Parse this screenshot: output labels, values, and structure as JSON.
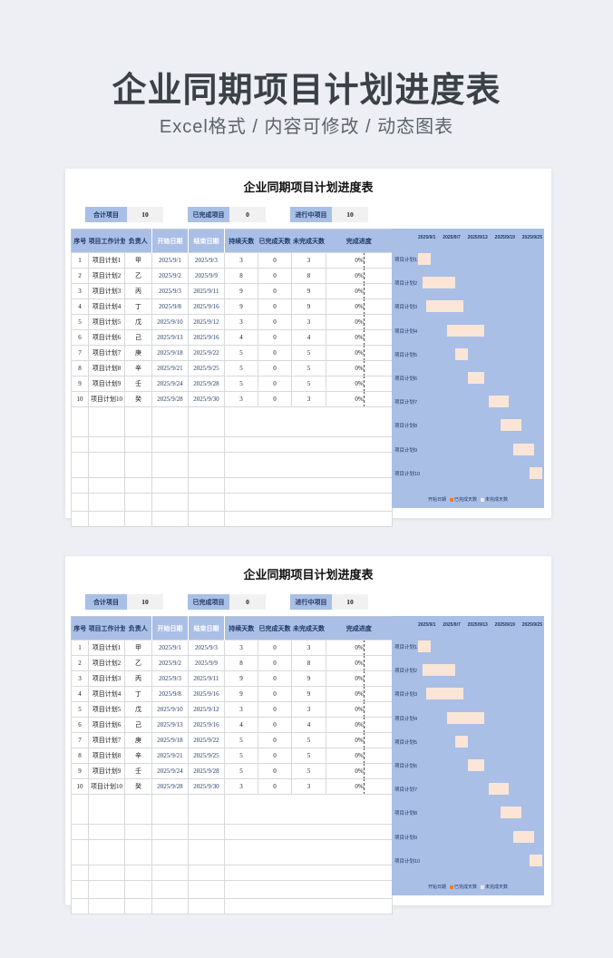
{
  "page": {
    "title": "企业同期项目计划进度表",
    "subtitle": "Excel格式 / 内容可修改 / 动态图表"
  },
  "sheet": {
    "title": "企业同期项目计划进度表",
    "stats": [
      {
        "label": "合计项目",
        "value": "10"
      },
      {
        "label": "已完成项目",
        "value": "0"
      },
      {
        "label": "进行中项目",
        "value": "10"
      }
    ],
    "table": {
      "headers": [
        "序号",
        "项目工作计划",
        "负责人",
        "开始日期",
        "结束日期",
        "持续天数",
        "已完成天数",
        "未完成天数",
        "完成进度"
      ],
      "rows": [
        [
          "1",
          "项目计划1",
          "甲",
          "2025/9/1",
          "2025/9/3",
          "3",
          "0",
          "3",
          "0%"
        ],
        [
          "2",
          "项目计划2",
          "乙",
          "2025/9/2",
          "2025/9/9",
          "8",
          "0",
          "8",
          "0%"
        ],
        [
          "3",
          "项目计划3",
          "丙",
          "2025/9/3",
          "2025/9/11",
          "9",
          "0",
          "9",
          "0%"
        ],
        [
          "4",
          "项目计划4",
          "丁",
          "2025/9/8",
          "2025/9/16",
          "9",
          "0",
          "9",
          "0%"
        ],
        [
          "5",
          "项目计划5",
          "戊",
          "2025/9/10",
          "2025/9/12",
          "3",
          "0",
          "3",
          "0%"
        ],
        [
          "6",
          "项目计划6",
          "己",
          "2025/9/13",
          "2025/9/16",
          "4",
          "0",
          "4",
          "0%"
        ],
        [
          "7",
          "项目计划7",
          "庚",
          "2025/9/18",
          "2025/9/22",
          "5",
          "0",
          "5",
          "0%"
        ],
        [
          "8",
          "项目计划8",
          "辛",
          "2025/9/21",
          "2025/9/25",
          "5",
          "0",
          "5",
          "0%"
        ],
        [
          "9",
          "项目计划9",
          "壬",
          "2025/9/24",
          "2025/9/28",
          "5",
          "0",
          "5",
          "0%"
        ],
        [
          "10",
          "项目计划10",
          "癸",
          "2025/9/28",
          "2025/9/30",
          "3",
          "0",
          "3",
          "0%"
        ]
      ],
      "empty_rows": 6
    },
    "chart_data": {
      "type": "bar",
      "subtype": "gantt-stacked-horizontal",
      "title": "",
      "x_ticks": [
        "2025/9/1",
        "2025/9/7",
        "2025/9/13",
        "2025/9/19",
        "2025/9/25"
      ],
      "x_range_days": [
        0,
        30
      ],
      "categories": [
        "项目计划1",
        "项目计划2",
        "项目计划3",
        "项目计划4",
        "项目计划5",
        "项目计划6",
        "项目计划7",
        "项目计划8",
        "项目计划9",
        "项目计划10"
      ],
      "series": [
        {
          "name": "开始日期",
          "role": "offset",
          "values": [
            0,
            1,
            2,
            7,
            9,
            12,
            17,
            20,
            23,
            27
          ],
          "color": null
        },
        {
          "name": "已完成天数",
          "values": [
            0,
            0,
            0,
            0,
            0,
            0,
            0,
            0,
            0,
            0
          ],
          "color": "#ed7d31"
        },
        {
          "name": "未完成天数",
          "values": [
            3,
            8,
            9,
            9,
            3,
            4,
            5,
            5,
            5,
            3
          ],
          "color": "#fbe5d6"
        }
      ],
      "legend": [
        "开始日期",
        "已完成天数",
        "未完成天数"
      ],
      "legend_position": "bottom",
      "plot_background": "#a9bfe6"
    },
    "colors": {
      "accent_blue": "#a9bfe6",
      "bar_fill": "#fbe5d6",
      "completed_orange": "#ed7d31",
      "stat_value_bg": "#f1f1f2",
      "header_text": "#1f3864"
    }
  }
}
